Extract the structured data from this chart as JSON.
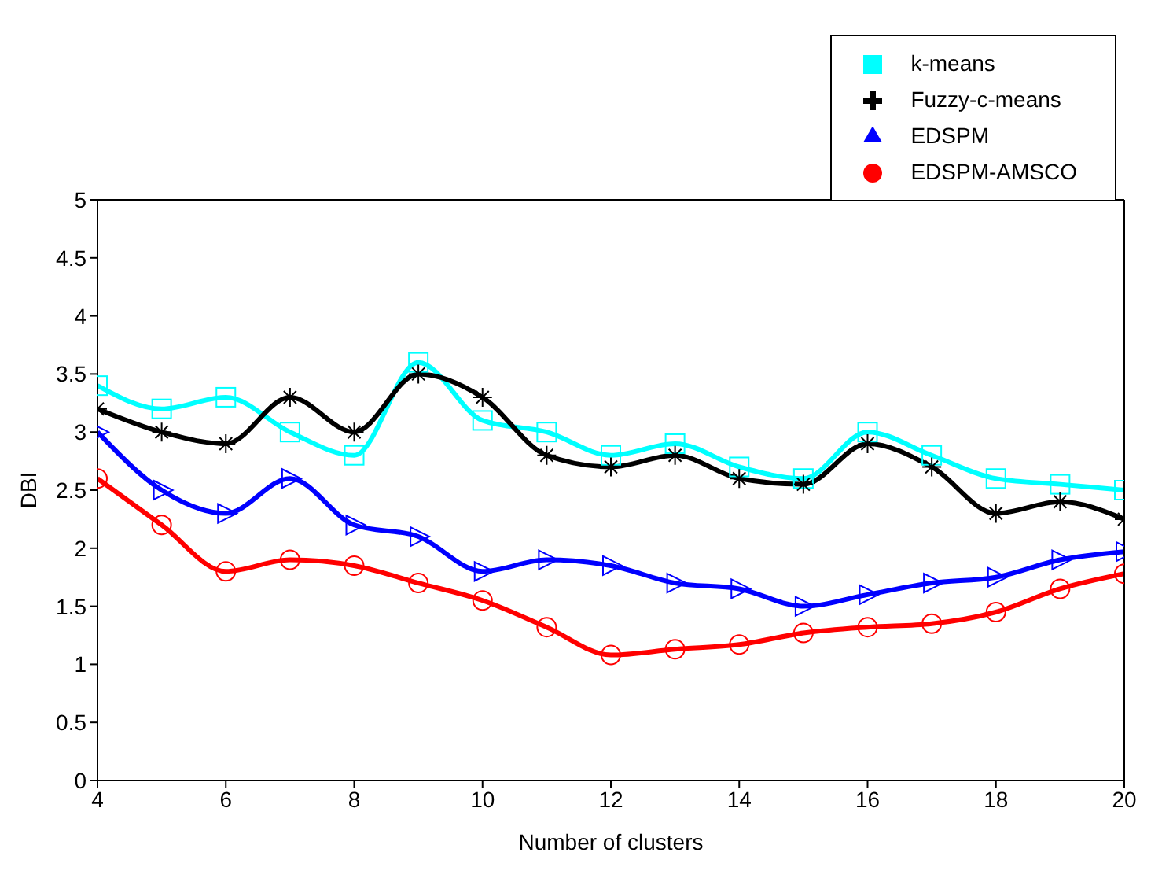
{
  "chart_data": {
    "type": "line",
    "xlabel": "Number of clusters",
    "ylabel": "DBI",
    "x": [
      4,
      5,
      6,
      7,
      8,
      9,
      10,
      11,
      12,
      13,
      14,
      15,
      16,
      17,
      18,
      19,
      20
    ],
    "series": [
      {
        "name": "k-means",
        "color": "#00ffff",
        "marker": "square",
        "values": [
          3.4,
          3.2,
          3.3,
          3.0,
          2.8,
          3.6,
          3.1,
          3.0,
          2.8,
          2.9,
          2.7,
          2.6,
          3.0,
          2.8,
          2.6,
          2.55,
          2.5
        ]
      },
      {
        "name": "Fuzzy-c-means",
        "color": "#000000",
        "marker": "cross",
        "values": [
          3.2,
          3.0,
          2.9,
          3.3,
          3.0,
          3.5,
          3.3,
          2.8,
          2.7,
          2.8,
          2.6,
          2.55,
          2.9,
          2.7,
          2.3,
          2.4,
          2.25
        ]
      },
      {
        "name": "EDSPM",
        "color": "#0000ff",
        "marker": "triangle",
        "values": [
          3.0,
          2.5,
          2.3,
          2.6,
          2.2,
          2.1,
          1.8,
          1.9,
          1.85,
          1.7,
          1.65,
          1.5,
          1.6,
          1.7,
          1.75,
          1.9,
          1.97
        ]
      },
      {
        "name": "EDSPM-AMSCO",
        "color": "#ff0000",
        "marker": "circle",
        "values": [
          2.6,
          2.2,
          1.8,
          1.9,
          1.85,
          1.7,
          1.55,
          1.32,
          1.08,
          1.13,
          1.17,
          1.27,
          1.32,
          1.35,
          1.45,
          1.65,
          1.78
        ]
      }
    ],
    "xlim": [
      4,
      20
    ],
    "xticks": [
      4,
      6,
      8,
      10,
      12,
      14,
      16,
      18,
      20
    ],
    "ylim": [
      0,
      5
    ],
    "yticks": [
      0,
      0.5,
      1,
      1.5,
      2,
      2.5,
      3,
      3.5,
      4,
      4.5,
      5
    ],
    "grid": false,
    "legend": "top right",
    "line_style": "solid"
  }
}
